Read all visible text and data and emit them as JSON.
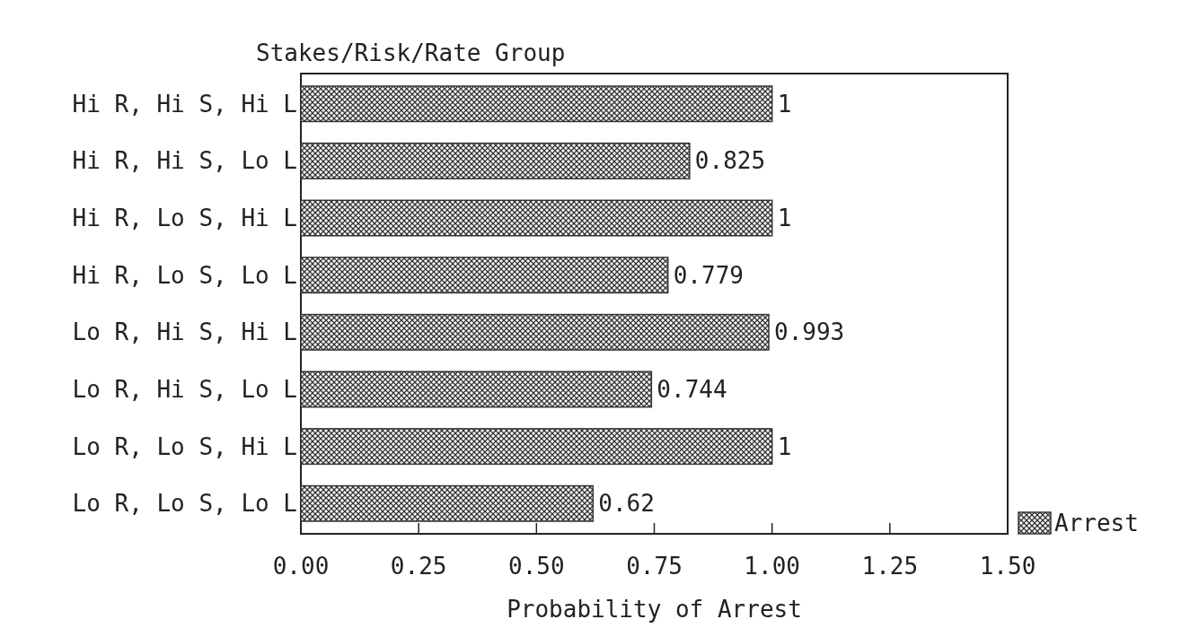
{
  "chart_data": {
    "type": "bar",
    "orientation": "horizontal",
    "ylabel": "Stakes/Risk/Rate Group",
    "xlabel": "Probability of Arrest",
    "categories": [
      "Hi R, Hi S, Hi L",
      "Hi R, Hi S, Lo L",
      "Hi R, Lo S, Hi L",
      "Hi R, Lo S, Lo L",
      "Lo R, Hi S, Hi L",
      "Lo R, Hi S, Lo L",
      "Lo R, Lo S, Hi L",
      "Lo R, Lo S, Lo L"
    ],
    "series": [
      {
        "name": "Arrest",
        "color": "#333333",
        "values": [
          1,
          0.825,
          1,
          0.779,
          0.993,
          0.744,
          1,
          0.62
        ]
      }
    ],
    "xlim": [
      0,
      1.5
    ],
    "xticks": [
      {
        "value": 0,
        "label": "0.00"
      },
      {
        "value": 0.25,
        "label": "0.25"
      },
      {
        "value": 0.5,
        "label": "0.50"
      },
      {
        "value": 0.75,
        "label": "0.75"
      },
      {
        "value": 1,
        "label": "1.00"
      },
      {
        "value": 1.25,
        "label": "1.25"
      },
      {
        "value": 1.5,
        "label": "1.50"
      }
    ],
    "data_labels": true,
    "legend": "bottom right",
    "grid": false
  }
}
